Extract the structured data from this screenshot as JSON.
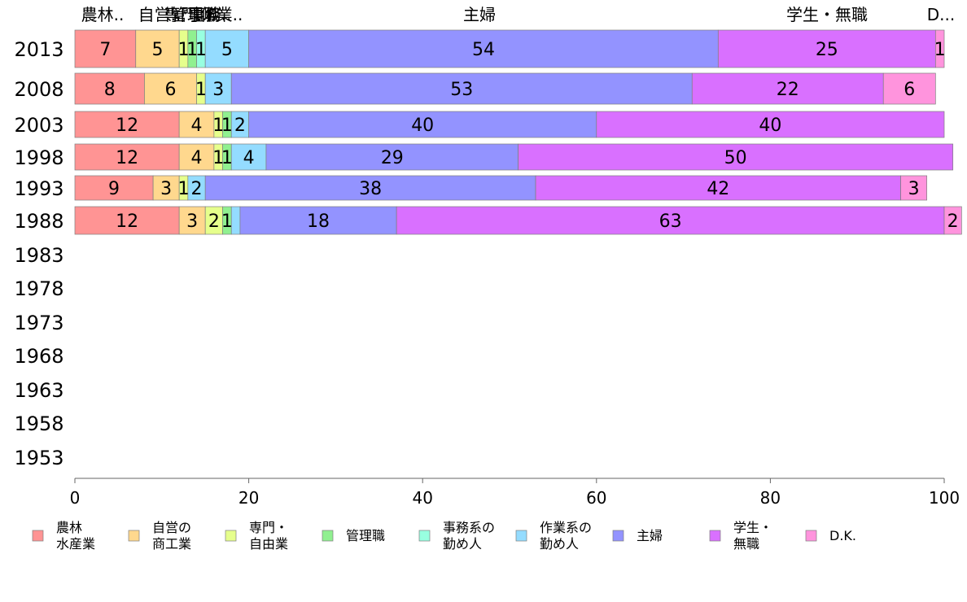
{
  "chart_data": {
    "type": "bar",
    "orientation": "horizontal",
    "stacked": true,
    "title": "",
    "xlabel": "",
    "ylabel": "",
    "xlim": [
      0,
      100
    ],
    "x_ticks": [
      "0",
      "20",
      "40",
      "60",
      "80",
      "100"
    ],
    "categories": [
      "2013",
      "2008",
      "2003",
      "1998",
      "1993",
      "1988",
      "1983",
      "1978",
      "1973",
      "1968",
      "1963",
      "1958",
      "1953"
    ],
    "top_labels": [
      "農林..",
      "自営..",
      "専門..",
      "管理職",
      "事務..",
      "作業..",
      "主婦",
      "学生・無職",
      "D..."
    ],
    "series": [
      {
        "name": "農林\n水産業",
        "color": "#ff9494",
        "values": [
          7,
          8,
          12,
          12,
          9,
          12,
          null,
          null,
          null,
          null,
          null,
          null,
          null
        ]
      },
      {
        "name": "自営の\n商工業",
        "color": "#ffd88e",
        "values": [
          5,
          6,
          4,
          4,
          3,
          3,
          null,
          null,
          null,
          null,
          null,
          null,
          null
        ]
      },
      {
        "name": "専門・\n自由業",
        "color": "#e6ff8c",
        "values": [
          1,
          1,
          1,
          1,
          1,
          2,
          null,
          null,
          null,
          null,
          null,
          null,
          null
        ]
      },
      {
        "name": "管理職",
        "color": "#90f090",
        "values": [
          1,
          0,
          1,
          1,
          0,
          1,
          null,
          null,
          null,
          null,
          null,
          null,
          null
        ]
      },
      {
        "name": "事務系の\n勤め人",
        "color": "#98ffe0",
        "values": [
          1,
          0,
          0,
          0,
          0,
          0,
          null,
          null,
          null,
          null,
          null,
          null,
          null
        ]
      },
      {
        "name": "作業系の\n勤め人",
        "color": "#94dcff",
        "values": [
          5,
          3,
          2,
          4,
          2,
          1,
          null,
          null,
          null,
          null,
          null,
          null,
          null
        ]
      },
      {
        "name": "主婦",
        "color": "#9393ff",
        "values": [
          54,
          53,
          40,
          29,
          38,
          18,
          null,
          null,
          null,
          null,
          null,
          null,
          null
        ]
      },
      {
        "name": "学生・\n無職",
        "color": "#d970ff",
        "values": [
          25,
          22,
          40,
          50,
          42,
          63,
          null,
          null,
          null,
          null,
          null,
          null,
          null
        ]
      },
      {
        "name": "D.K.",
        "color": "#ff94dd",
        "values": [
          1,
          6,
          0,
          0,
          3,
          2,
          null,
          null,
          null,
          null,
          null,
          null,
          null
        ]
      }
    ],
    "segment_label_overrides": {
      "2013": [
        7,
        5,
        1,
        1,
        1,
        5,
        54,
        25,
        1
      ],
      "2008": [
        8,
        6,
        1,
        null,
        null,
        3,
        53,
        22,
        6
      ],
      "2003": [
        12,
        4,
        1,
        1,
        null,
        2,
        40,
        40,
        null
      ],
      "1998": [
        12,
        4,
        1,
        1,
        null,
        4,
        29,
        50,
        null
      ],
      "1993": [
        9,
        3,
        1,
        null,
        null,
        2,
        38,
        42,
        3
      ],
      "1988": [
        12,
        3,
        2,
        1,
        null,
        null,
        18,
        63,
        2
      ]
    },
    "legend_position": "bottom",
    "grid": false
  }
}
